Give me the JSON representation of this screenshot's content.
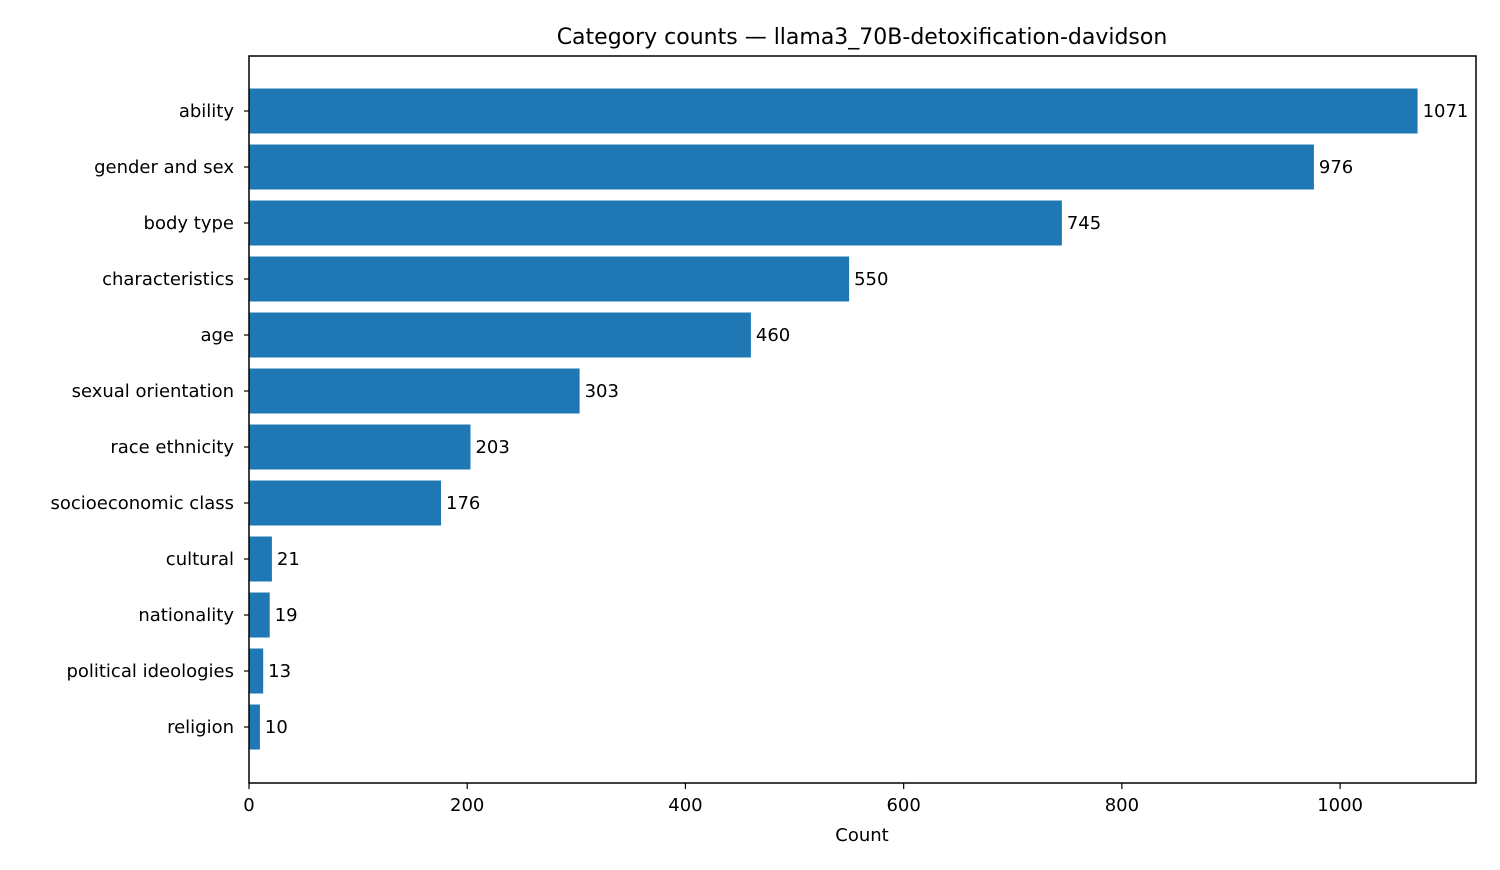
{
  "chart_data": {
    "type": "bar",
    "orientation": "horizontal",
    "title": "Category counts — llama3_70B-detoxification-davidson",
    "xlabel": "Count",
    "ylabel": "",
    "categories": [
      "ability",
      "gender and sex",
      "body type",
      "characteristics",
      "age",
      "sexual orientation",
      "race ethnicity",
      "socioeconomic class",
      "cultural",
      "nationality",
      "political ideologies",
      "religion"
    ],
    "values": [
      1071,
      976,
      745,
      550,
      460,
      303,
      203,
      176,
      21,
      19,
      13,
      10
    ],
    "value_labels": [
      "1071",
      "976",
      "745",
      "550",
      "460",
      "303",
      "203",
      "176",
      "21",
      "19",
      "13",
      "10"
    ],
    "xlim": [
      0,
      1124.55
    ],
    "x_ticks": [
      0,
      200,
      400,
      600,
      800,
      1000
    ],
    "x_tick_labels": [
      "0",
      "200",
      "400",
      "600",
      "800",
      "1000"
    ],
    "grid": false,
    "bar_color": "#1f77b4"
  }
}
